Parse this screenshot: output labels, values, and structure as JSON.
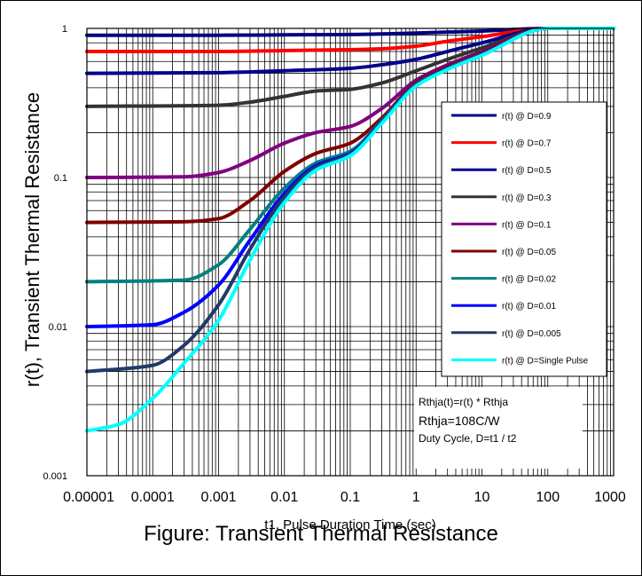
{
  "chart_data": {
    "type": "line",
    "x_scale": "log",
    "y_scale": "log",
    "xlim": [
      1e-05,
      1000
    ],
    "ylim": [
      0.001,
      1
    ],
    "xlabel": "t1, Pulse Duration Time (sec)",
    "ylabel": "r(t), Transient Thermal Resistance",
    "x_ticks": [
      "0.00001",
      "0.0001",
      "0.001",
      "0.01",
      "0.1",
      "1",
      "10",
      "100",
      "1000"
    ],
    "y_ticks": [
      "1",
      "0.1",
      "0.01",
      "0.001"
    ],
    "grid": true,
    "legend_position": "right",
    "annotations": [
      "Rthja(t)=r(t) * Rthja",
      "Rthja=108C/W",
      "Duty Cycle, D=t1 /  t2"
    ],
    "series": [
      {
        "name": "r(t) @ D=0.9",
        "color": "#00007f",
        "points": [
          [
            1e-05,
            0.9
          ],
          [
            0.001,
            0.9
          ],
          [
            0.01,
            0.905
          ],
          [
            0.1,
            0.91
          ],
          [
            1,
            0.93
          ],
          [
            10,
            0.96
          ],
          [
            100,
            1
          ],
          [
            1000,
            1
          ]
        ]
      },
      {
        "name": "r(t) @ D=0.7",
        "color": "#ff0000",
        "points": [
          [
            1e-05,
            0.7
          ],
          [
            0.001,
            0.7
          ],
          [
            0.01,
            0.71
          ],
          [
            0.1,
            0.72
          ],
          [
            0.3,
            0.73
          ],
          [
            1,
            0.76
          ],
          [
            3,
            0.82
          ],
          [
            10,
            0.88
          ],
          [
            100,
            1
          ],
          [
            1000,
            1
          ]
        ]
      },
      {
        "name": "r(t) @ D=0.5",
        "color": "#00008b",
        "points": [
          [
            1e-05,
            0.5
          ],
          [
            0.001,
            0.505
          ],
          [
            0.01,
            0.52
          ],
          [
            0.1,
            0.54
          ],
          [
            0.3,
            0.57
          ],
          [
            1,
            0.62
          ],
          [
            3,
            0.7
          ],
          [
            10,
            0.8
          ],
          [
            100,
            1
          ],
          [
            1000,
            1
          ]
        ]
      },
      {
        "name": "r(t) @ D=0.3",
        "color": "#333333",
        "points": [
          [
            1e-05,
            0.3
          ],
          [
            0.001,
            0.305
          ],
          [
            0.003,
            0.32
          ],
          [
            0.01,
            0.35
          ],
          [
            0.03,
            0.38
          ],
          [
            0.1,
            0.39
          ],
          [
            0.3,
            0.43
          ],
          [
            1,
            0.52
          ],
          [
            3,
            0.62
          ],
          [
            10,
            0.74
          ],
          [
            100,
            1
          ],
          [
            1000,
            1
          ]
        ]
      },
      {
        "name": "r(t) @ D=0.1",
        "color": "#800080",
        "points": [
          [
            1e-05,
            0.1
          ],
          [
            0.0003,
            0.101
          ],
          [
            0.001,
            0.108
          ],
          [
            0.003,
            0.13
          ],
          [
            0.01,
            0.17
          ],
          [
            0.03,
            0.2
          ],
          [
            0.1,
            0.22
          ],
          [
            0.3,
            0.29
          ],
          [
            1,
            0.45
          ],
          [
            3,
            0.57
          ],
          [
            10,
            0.7
          ],
          [
            100,
            1
          ],
          [
            1000,
            1
          ]
        ]
      },
      {
        "name": "r(t) @ D=0.05",
        "color": "#7f0000",
        "points": [
          [
            1e-05,
            0.05
          ],
          [
            0.0003,
            0.0505
          ],
          [
            0.001,
            0.053
          ],
          [
            0.003,
            0.07
          ],
          [
            0.01,
            0.11
          ],
          [
            0.03,
            0.145
          ],
          [
            0.1,
            0.17
          ],
          [
            0.3,
            0.25
          ],
          [
            1,
            0.43
          ],
          [
            3,
            0.55
          ],
          [
            10,
            0.68
          ],
          [
            100,
            1
          ],
          [
            1000,
            1
          ]
        ]
      },
      {
        "name": "r(t) @ D=0.02",
        "color": "#008080",
        "points": [
          [
            1e-05,
            0.02
          ],
          [
            0.0003,
            0.0205
          ],
          [
            0.001,
            0.026
          ],
          [
            0.003,
            0.045
          ],
          [
            0.01,
            0.085
          ],
          [
            0.03,
            0.125
          ],
          [
            0.1,
            0.15
          ],
          [
            0.3,
            0.24
          ],
          [
            1,
            0.42
          ],
          [
            3,
            0.54
          ],
          [
            10,
            0.67
          ],
          [
            100,
            1
          ],
          [
            1000,
            1
          ]
        ]
      },
      {
        "name": "r(t) @ D=0.01",
        "color": "#0000ff",
        "points": [
          [
            1e-05,
            0.01
          ],
          [
            0.0001,
            0.0103
          ],
          [
            0.0003,
            0.0125
          ],
          [
            0.001,
            0.019
          ],
          [
            0.003,
            0.038
          ],
          [
            0.01,
            0.078
          ],
          [
            0.03,
            0.12
          ],
          [
            0.1,
            0.145
          ],
          [
            0.3,
            0.235
          ],
          [
            1,
            0.415
          ],
          [
            3,
            0.535
          ],
          [
            10,
            0.665
          ],
          [
            100,
            1
          ],
          [
            1000,
            1
          ]
        ]
      },
      {
        "name": "r(t) @ D=0.005",
        "color": "#1f3a68",
        "points": [
          [
            1e-05,
            0.005
          ],
          [
            0.0001,
            0.0055
          ],
          [
            0.0003,
            0.0075
          ],
          [
            0.001,
            0.014
          ],
          [
            0.003,
            0.033
          ],
          [
            0.01,
            0.074
          ],
          [
            0.03,
            0.117
          ],
          [
            0.1,
            0.143
          ],
          [
            0.3,
            0.233
          ],
          [
            1,
            0.413
          ],
          [
            3,
            0.533
          ],
          [
            10,
            0.663
          ],
          [
            100,
            1
          ],
          [
            1000,
            1
          ]
        ]
      },
      {
        "name": "r(t) @ D=Single Pulse",
        "color": "#00ffff",
        "points": [
          [
            1e-05,
            0.002
          ],
          [
            3e-05,
            0.0022
          ],
          [
            0.0001,
            0.0033
          ],
          [
            0.0003,
            0.0057
          ],
          [
            0.001,
            0.011
          ],
          [
            0.003,
            0.028
          ],
          [
            0.01,
            0.068
          ],
          [
            0.03,
            0.112
          ],
          [
            0.1,
            0.14
          ],
          [
            0.3,
            0.23
          ],
          [
            1,
            0.41
          ],
          [
            3,
            0.53
          ],
          [
            10,
            0.66
          ],
          [
            100,
            1
          ],
          [
            1000,
            1
          ]
        ]
      }
    ]
  },
  "figure_caption": "Figure:  Transient Thermal Resistance"
}
